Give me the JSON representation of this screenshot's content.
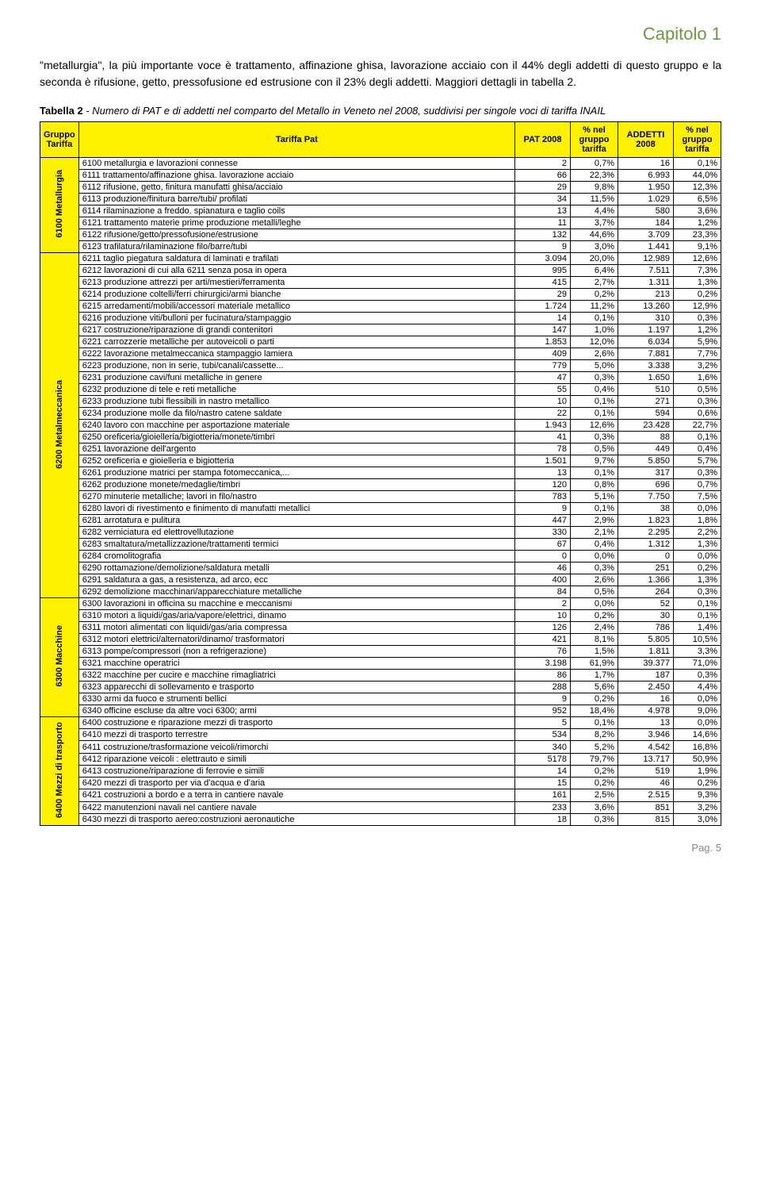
{
  "chapter": "Capitolo 1",
  "intro": "\"metallurgia\", la più importante voce è trattamento, affinazione ghisa, lavorazione acciaio con il 44% degli addetti di questo gruppo e la seconda è rifusione, getto, pressofusione ed estrusione con il 23% degli addetti. Maggiori dettagli in tabella 2.",
  "caption_bold": "Tabella 2",
  "caption_rest": " - Numero di PAT e di addetti nel comparto del Metallo in Veneto nel 2008, suddivisi per singole voci di tariffa INAIL",
  "headers": {
    "group": "Gruppo Tariffa",
    "tariffa": "Tariffa Pat",
    "pat": "PAT 2008",
    "pct1": "% nel gruppo tariffa",
    "addetti": "ADDETTI 2008",
    "pct2": "% nel gruppo tariffa"
  },
  "groups": [
    {
      "label": "6100 Metallurgia",
      "rows": [
        [
          "6100 metallurgia e lavorazioni connesse",
          "2",
          "0,7%",
          "16",
          "0,1%"
        ],
        [
          "6111 trattamento/affinazione ghisa. lavorazione acciaio",
          "66",
          "22,3%",
          "6.993",
          "44,0%"
        ],
        [
          "6112 rifusione, getto, finitura manufatti ghisa/acciaio",
          "29",
          "9,8%",
          "1.950",
          "12,3%"
        ],
        [
          "6113 produzione/finitura barre/tubi/ profilati",
          "34",
          "11,5%",
          "1.029",
          "6,5%"
        ],
        [
          "6114 rilaminazione a freddo. spianatura e taglio coils",
          "13",
          "4,4%",
          "580",
          "3,6%"
        ],
        [
          "6121 trattamento materie prime produzione metalli/leghe",
          "11",
          "3,7%",
          "184",
          "1,2%"
        ],
        [
          "6122 rifusione/getto/pressofusione/estrusione",
          "132",
          "44,6%",
          "3.709",
          "23,3%"
        ],
        [
          "6123 trafilatura/rilaminazione filo/barre/tubi",
          "9",
          "3,0%",
          "1.441",
          "9,1%"
        ]
      ]
    },
    {
      "label": "6200 Metalmeccanica",
      "rows": [
        [
          "6211 taglio piegatura saldatura di laminati e trafilati",
          "3.094",
          "20,0%",
          "12.989",
          "12,6%"
        ],
        [
          "6212 lavorazioni di cui alla 6211 senza posa in opera",
          "995",
          "6,4%",
          "7.511",
          "7,3%"
        ],
        [
          "6213 produzione attrezzi per arti/mestieri/ferramenta",
          "415",
          "2,7%",
          "1.311",
          "1,3%"
        ],
        [
          "6214 produzione coltelli/ferri chirurgici/armi bianche",
          "29",
          "0,2%",
          "213",
          "0,2%"
        ],
        [
          "6215 arredamenti/mobili/accessori materiale metallico",
          "1.724",
          "11,2%",
          "13.260",
          "12,9%"
        ],
        [
          "6216 produzione viti/bulloni per fucinatura/stampaggio",
          "14",
          "0,1%",
          "310",
          "0,3%"
        ],
        [
          "6217 costruzione/riparazione di grandi contenitori",
          "147",
          "1,0%",
          "1.197",
          "1,2%"
        ],
        [
          "6221 carrozzerie metalliche per autoveicoli o parti",
          "1.853",
          "12,0%",
          "6.034",
          "5,9%"
        ],
        [
          "6222 lavorazione metalmeccanica stampaggio lamiera",
          "409",
          "2,6%",
          "7.881",
          "7,7%"
        ],
        [
          "6223 produzione, non in serie, tubi/canali/cassette...",
          "779",
          "5,0%",
          "3.338",
          "3,2%"
        ],
        [
          "6231 produzione cavi/funi metalliche in genere",
          "47",
          "0,3%",
          "1.650",
          "1,6%"
        ],
        [
          "6232 produzione di tele e reti metalliche",
          "55",
          "0,4%",
          "510",
          "0,5%"
        ],
        [
          "6233 produzione tubi flessibili in nastro metallico",
          "10",
          "0,1%",
          "271",
          "0,3%"
        ],
        [
          "6234 produzione molle da filo/nastro catene saldate",
          "22",
          "0,1%",
          "594",
          "0,6%"
        ],
        [
          "6240 lavoro con macchine per asportazione materiale",
          "1.943",
          "12,6%",
          "23.428",
          "22,7%"
        ],
        [
          "6250 oreficeria/gioielleria/bigiotteria/monete/timbri",
          "41",
          "0,3%",
          "88",
          "0,1%"
        ],
        [
          "6251 lavorazione dell'argento",
          "78",
          "0,5%",
          "449",
          "0,4%"
        ],
        [
          "6252 oreficeria e gioielleria e bigiotteria",
          "1.501",
          "9,7%",
          "5.850",
          "5,7%"
        ],
        [
          "6261 produzione matrici per stampa fotomeccanica,...",
          "13",
          "0,1%",
          "317",
          "0,3%"
        ],
        [
          "6262 produzione monete/medaglie/timbri",
          "120",
          "0,8%",
          "696",
          "0,7%"
        ],
        [
          "6270 minuterie metalliche; lavori in filo/nastro",
          "783",
          "5,1%",
          "7.750",
          "7,5%"
        ],
        [
          "6280 lavori di rivestimento e finimento di manufatti metallici",
          "9",
          "0,1%",
          "38",
          "0,0%"
        ],
        [
          "6281 arrotatura e pulitura",
          "447",
          "2,9%",
          "1.823",
          "1,8%"
        ],
        [
          "6282 verniciatura ed elettrovellutazione",
          "330",
          "2,1%",
          "2.295",
          "2,2%"
        ],
        [
          "6283 smaltatura/metallizzazione/trattamenti termici",
          "67",
          "0,4%",
          "1.312",
          "1,3%"
        ],
        [
          "6284 cromolitografia",
          "0",
          "0,0%",
          "0",
          "0,0%"
        ],
        [
          "6290 rottamazione/demolizione/saldatura metalli",
          "46",
          "0,3%",
          "251",
          "0,2%"
        ],
        [
          "6291 saldatura a gas, a resistenza, ad arco, ecc",
          "400",
          "2,6%",
          "1.366",
          "1,3%"
        ],
        [
          "6292 demolizione macchinari/apparecchiature metalliche",
          "84",
          "0,5%",
          "264",
          "0,3%"
        ]
      ]
    },
    {
      "label": "6300 Macchine",
      "rows": [
        [
          "6300 lavorazioni in officina su macchine e meccanismi",
          "2",
          "0,0%",
          "52",
          "0,1%"
        ],
        [
          "6310 motori a liquidi/gas/aria/vapore/elettrici, dinamo",
          "10",
          "0,2%",
          "30",
          "0,1%"
        ],
        [
          "6311 motori alimentati con liquidi/gas/aria compressa",
          "126",
          "2,4%",
          "786",
          "1,4%"
        ],
        [
          "6312 motori elettrici/alternatori/dinamo/ trasformatori",
          "421",
          "8,1%",
          "5.805",
          "10,5%"
        ],
        [
          "6313 pompe/compressori (non a refrigerazione)",
          "76",
          "1,5%",
          "1.811",
          "3,3%"
        ],
        [
          "6321 macchine operatrici",
          "3.198",
          "61,9%",
          "39.377",
          "71,0%"
        ],
        [
          "6322 macchine per cucire e macchine rimagliatrici",
          "86",
          "1,7%",
          "187",
          "0,3%"
        ],
        [
          "6323 apparecchi di sollevamento e trasporto",
          "288",
          "5,6%",
          "2.450",
          "4,4%"
        ],
        [
          "6330 armi da fuoco e strumenti bellici",
          "9",
          "0,2%",
          "16",
          "0,0%"
        ],
        [
          "6340 officine escluse da altre voci 6300; armi",
          "952",
          "18,4%",
          "4.978",
          "9,0%"
        ]
      ]
    },
    {
      "label": "6400 Mezzi di trasporto",
      "rows": [
        [
          "6400 costruzione e riparazione mezzi di trasporto",
          "5",
          "0,1%",
          "13",
          "0,0%"
        ],
        [
          "6410 mezzi di trasporto terrestre",
          "534",
          "8,2%",
          "3.946",
          "14,6%"
        ],
        [
          "6411 costruzione/trasformazione veicoli/rimorchi",
          "340",
          "5,2%",
          "4.542",
          "16,8%"
        ],
        [
          "6412 riparazione veicoli : elettrauto e simili",
          "5178",
          "79,7%",
          "13.717",
          "50,9%"
        ],
        [
          "6413 costruzione/riparazione di ferrovie e simili",
          "14",
          "0,2%",
          "519",
          "1,9%"
        ],
        [
          "6420 mezzi di trasporto per via d'acqua e d'aria",
          "15",
          "0,2%",
          "46",
          "0,2%"
        ],
        [
          "6421 costruzioni a bordo e a terra in cantiere navale",
          "161",
          "2,5%",
          "2.515",
          "9,3%"
        ],
        [
          "6422 manutenzioni navali nel cantiere navale",
          "233",
          "3,6%",
          "851",
          "3,2%"
        ],
        [
          "6430 mezzi di trasporto aereo:costruzioni aeronautiche",
          "18",
          "0,3%",
          "815",
          "3,0%"
        ]
      ]
    }
  ],
  "page": "Pag. 5"
}
